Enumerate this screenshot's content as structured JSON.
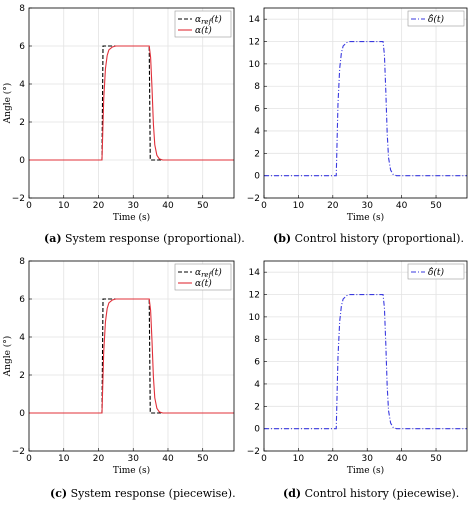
{
  "chart_data": [
    {
      "type": "line",
      "panel": "a",
      "caption_label": "(a)",
      "caption_text": " System response (proportional).",
      "xlabel": "Time (s)",
      "ylabel": "Angle (°)",
      "xlim": [
        0,
        59
      ],
      "ylim": [
        -2,
        8
      ],
      "xticks": [
        0,
        10,
        20,
        30,
        40,
        50
      ],
      "yticks": [
        -2,
        0,
        2,
        4,
        6,
        8
      ],
      "grid": true,
      "legend": "top-right",
      "series": [
        {
          "name": "α_ref(t)",
          "color": "#000000",
          "dash": "4,2",
          "x": [
            0,
            21,
            21.3,
            34.6,
            34.9,
            59
          ],
          "y": [
            0,
            0,
            6,
            6,
            0,
            0
          ]
        },
        {
          "name": "α(t)",
          "color": "#e0303a",
          "dash": "",
          "x": [
            0,
            21,
            21.5,
            22,
            22.5,
            23,
            24,
            25,
            26,
            34.6,
            35,
            35.4,
            35.8,
            36.2,
            36.8,
            37.5,
            38.5,
            59
          ],
          "y": [
            0,
            0,
            3.2,
            4.8,
            5.5,
            5.8,
            5.95,
            6,
            6,
            6,
            5.4,
            3.8,
            1.9,
            0.8,
            0.25,
            0.06,
            0,
            0
          ]
        }
      ]
    },
    {
      "type": "line",
      "panel": "b",
      "caption_label": "(b)",
      "caption_text": " Control history (proportional).",
      "xlabel": "Time (s)",
      "ylabel": "",
      "xlim": [
        0,
        59
      ],
      "ylim": [
        -2,
        15
      ],
      "xticks": [
        0,
        10,
        20,
        30,
        40,
        50
      ],
      "yticks": [
        -2,
        0,
        2,
        4,
        6,
        8,
        10,
        12,
        14
      ],
      "grid": true,
      "legend": "top-right",
      "series": [
        {
          "name": "δ̂(t)",
          "color": "#3a3adf",
          "dash": "5,2,1,2",
          "x": [
            0,
            21,
            21.5,
            22,
            22.5,
            23,
            24,
            25,
            26,
            34.6,
            35,
            35.4,
            35.8,
            36.2,
            36.8,
            37.5,
            38.5,
            59
          ],
          "y": [
            0,
            0,
            6.4,
            9.6,
            11,
            11.6,
            11.9,
            12,
            12,
            12,
            10.8,
            7.6,
            3.8,
            1.6,
            0.5,
            0.12,
            0,
            0
          ]
        }
      ]
    },
    {
      "type": "line",
      "panel": "c",
      "caption_label": "(c)",
      "caption_text": " System response (piecewise).",
      "xlabel": "Time (s)",
      "ylabel": "Angle (°)",
      "xlim": [
        0,
        59
      ],
      "ylim": [
        -2,
        8
      ],
      "xticks": [
        0,
        10,
        20,
        30,
        40,
        50
      ],
      "yticks": [
        -2,
        0,
        2,
        4,
        6,
        8
      ],
      "grid": true,
      "legend": "top-right",
      "series": [
        {
          "name": "α_ref(t)",
          "color": "#000000",
          "dash": "4,2",
          "x": [
            0,
            21,
            21.3,
            34.6,
            34.9,
            59
          ],
          "y": [
            0,
            0,
            6,
            6,
            0,
            0
          ]
        },
        {
          "name": "α(t)",
          "color": "#e0303a",
          "dash": "",
          "x": [
            0,
            21,
            21.5,
            22,
            22.5,
            23,
            24,
            25,
            26,
            34.6,
            35,
            35.4,
            35.8,
            36.2,
            36.8,
            37.5,
            38.5,
            59
          ],
          "y": [
            0,
            0,
            3.2,
            4.8,
            5.5,
            5.8,
            5.95,
            6,
            6,
            6,
            5.4,
            3.8,
            1.9,
            0.8,
            0.25,
            0.06,
            0,
            0
          ]
        }
      ]
    },
    {
      "type": "line",
      "panel": "d",
      "caption_label": "(d)",
      "caption_text": " Control history (piecewise).",
      "xlabel": "Time (s)",
      "ylabel": "",
      "xlim": [
        0,
        59
      ],
      "ylim": [
        -2,
        15
      ],
      "xticks": [
        0,
        10,
        20,
        30,
        40,
        50
      ],
      "yticks": [
        -2,
        0,
        2,
        4,
        6,
        8,
        10,
        12,
        14
      ],
      "grid": true,
      "legend": "top-right",
      "series": [
        {
          "name": "δ̂(t)",
          "color": "#3a3adf",
          "dash": "5,2,1,2",
          "x": [
            0,
            21,
            21.5,
            22,
            22.5,
            23,
            24,
            25,
            26,
            34.6,
            35,
            35.4,
            35.8,
            36.2,
            36.8,
            37.5,
            38.5,
            59
          ],
          "y": [
            0,
            0,
            6.4,
            9.6,
            11,
            11.6,
            11.9,
            12,
            12,
            12,
            10.8,
            7.6,
            3.8,
            1.6,
            0.5,
            0.12,
            0,
            0
          ]
        }
      ]
    }
  ]
}
